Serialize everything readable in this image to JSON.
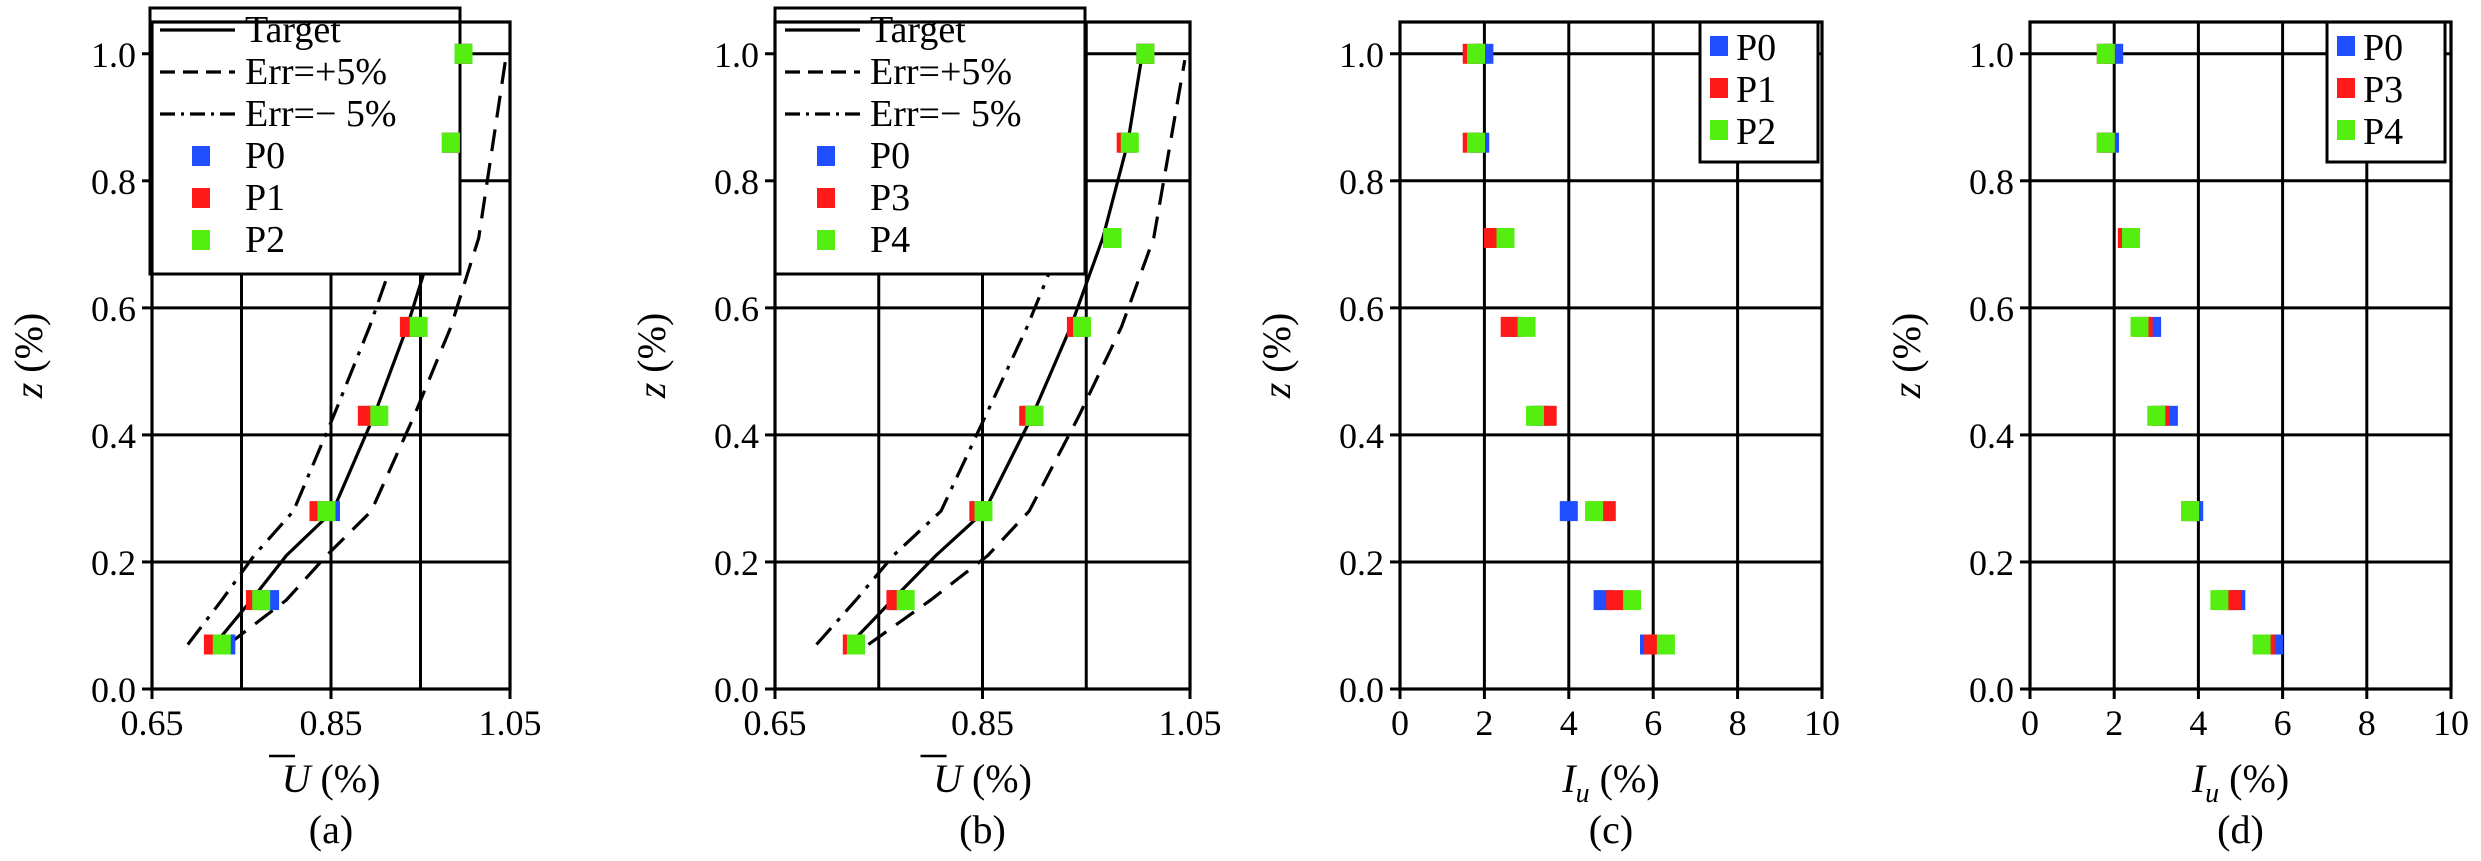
{
  "chart_data": [
    {
      "type": "scatter",
      "caption": "(a)",
      "xlabel_main": "U",
      "xlabel_unit": "(%)",
      "ylabel_main": "z",
      "ylabel_unit": "(%)",
      "xlim": [
        0.65,
        1.05
      ],
      "ylim": [
        0.0,
        1.05
      ],
      "xticks": [
        0.65,
        0.85,
        1.05
      ],
      "xtick_labels": [
        "0.65",
        "0.85",
        "1.05"
      ],
      "xgrid": [
        0.75,
        0.85,
        0.95
      ],
      "yticks": [
        0.0,
        0.2,
        0.4,
        0.6,
        0.8,
        1.0
      ],
      "ytick_labels": [
        "0.0",
        "0.2",
        "0.4",
        "0.6",
        "0.8",
        "1.0"
      ],
      "grid": true,
      "legend_position": "top-left",
      "lines": [
        {
          "name": "Target",
          "style": "solid",
          "x": [
            0.72,
            0.761,
            0.8,
            0.852,
            0.898,
            0.935,
            0.966,
            0.99
          ],
          "y": [
            0.07,
            0.14,
            0.21,
            0.28,
            0.43,
            0.57,
            0.71,
            0.86
          ]
        },
        {
          "name": "Err=+5%",
          "style": "dashed",
          "x": [
            0.735,
            0.8,
            0.845,
            0.895,
            0.943,
            0.984,
            1.015,
            1.045
          ],
          "y": [
            0.07,
            0.14,
            0.21,
            0.28,
            0.43,
            0.57,
            0.71,
            0.99
          ]
        },
        {
          "name": "Err=− 5%",
          "style": "dashdot",
          "x": [
            0.69,
            0.728,
            0.764,
            0.808,
            0.853,
            0.893,
            0.928
          ],
          "y": [
            0.07,
            0.14,
            0.21,
            0.28,
            0.43,
            0.57,
            0.71
          ]
        }
      ],
      "series": [
        {
          "name": "P0",
          "color": "#1f4fff",
          "x": [
            0.733,
            0.782,
            0.85,
            0.9,
            0.944,
            0.984,
            0.998
          ],
          "y": [
            0.07,
            0.14,
            0.28,
            0.43,
            0.57,
            0.86,
            1.0
          ]
        },
        {
          "name": "P1",
          "color": "#ff1a1a",
          "x": [
            0.718,
            0.765,
            0.836,
            0.89,
            0.937,
            0.984,
            0.998
          ],
          "y": [
            0.07,
            0.14,
            0.28,
            0.43,
            0.57,
            0.86,
            1.0
          ]
        },
        {
          "name": "P2",
          "color": "#55ee11",
          "x": [
            0.728,
            0.772,
            0.845,
            0.904,
            0.948,
            0.984,
            0.998
          ],
          "y": [
            0.07,
            0.14,
            0.28,
            0.43,
            0.57,
            0.86,
            1.0
          ]
        }
      ]
    },
    {
      "type": "scatter",
      "caption": "(b)",
      "xlabel_main": "U",
      "xlabel_unit": "(%)",
      "ylabel_main": "z",
      "ylabel_unit": "(%)",
      "xlim": [
        0.65,
        1.05
      ],
      "ylim": [
        0.0,
        1.05
      ],
      "xticks": [
        0.65,
        0.85,
        1.05
      ],
      "xtick_labels": [
        "0.65",
        "0.85",
        "1.05"
      ],
      "xgrid": [
        0.75,
        0.85,
        0.95
      ],
      "yticks": [
        0.0,
        0.2,
        0.4,
        0.6,
        0.8,
        1.0
      ],
      "ytick_labels": [
        "0.0",
        "0.2",
        "0.4",
        "0.6",
        "0.8",
        "1.0"
      ],
      "grid": true,
      "legend_position": "top-left",
      "lines": [
        {
          "name": "Target",
          "style": "solid",
          "x": [
            0.722,
            0.763,
            0.805,
            0.852,
            0.898,
            0.935,
            0.966,
            0.99,
            1.004
          ],
          "y": [
            0.07,
            0.14,
            0.21,
            0.28,
            0.43,
            0.57,
            0.71,
            0.86,
            1.0
          ]
        },
        {
          "name": "Err=+5%",
          "style": "dashed",
          "x": [
            0.74,
            0.8,
            0.855,
            0.895,
            0.943,
            0.984,
            1.015,
            1.045
          ],
          "y": [
            0.07,
            0.14,
            0.21,
            0.28,
            0.43,
            0.57,
            0.71,
            0.99
          ]
        },
        {
          "name": "Err=− 5%",
          "style": "dashdot",
          "x": [
            0.69,
            0.728,
            0.764,
            0.81,
            0.853,
            0.893,
            0.928
          ],
          "y": [
            0.07,
            0.14,
            0.21,
            0.28,
            0.43,
            0.57,
            0.71
          ]
        }
      ],
      "series": [
        {
          "name": "P0",
          "color": "#1f4fff",
          "x": [
            0.728,
            0.77,
            0.85,
            0.9,
            0.944,
            0.975,
            0.99,
            1.007
          ],
          "y": [
            0.07,
            0.14,
            0.28,
            0.43,
            0.57,
            0.71,
            0.86,
            1.0
          ]
        },
        {
          "name": "P3",
          "color": "#ff1a1a",
          "x": [
            0.724,
            0.766,
            0.846,
            0.894,
            0.94,
            0.975,
            0.988,
            1.007
          ],
          "y": [
            0.07,
            0.14,
            0.28,
            0.43,
            0.57,
            0.71,
            0.86,
            1.0
          ]
        },
        {
          "name": "P4",
          "color": "#55ee11",
          "x": [
            0.728,
            0.776,
            0.851,
            0.9,
            0.946,
            0.975,
            0.992,
            1.007
          ],
          "y": [
            0.07,
            0.14,
            0.28,
            0.43,
            0.57,
            0.71,
            0.86,
            1.0
          ]
        }
      ]
    },
    {
      "type": "scatter",
      "caption": "(c)",
      "xlabel_main": "I",
      "xlabel_sub": "u",
      "xlabel_unit": "(%)",
      "ylabel_main": "z",
      "ylabel_unit": "(%)",
      "xlim": [
        0,
        10
      ],
      "ylim": [
        0.0,
        1.05
      ],
      "xticks": [
        0,
        2,
        4,
        6,
        8,
        10
      ],
      "xtick_labels": [
        "0",
        "2",
        "4",
        "6",
        "8",
        "10"
      ],
      "xgrid": [
        2,
        4,
        6,
        8
      ],
      "yticks": [
        0.0,
        0.2,
        0.4,
        0.6,
        0.8,
        1.0
      ],
      "ytick_labels": [
        "0.0",
        "0.2",
        "0.4",
        "0.6",
        "0.8",
        "1.0"
      ],
      "grid": true,
      "legend_position": "top-right",
      "lines": [],
      "series": [
        {
          "name": "P0",
          "color": "#1f4fff",
          "x": [
            5.9,
            4.8,
            4.0,
            3.3,
            2.7,
            2.3,
            1.9,
            2.0
          ],
          "y": [
            0.07,
            0.14,
            0.28,
            0.43,
            0.57,
            0.71,
            0.86,
            1.0
          ]
        },
        {
          "name": "P1",
          "color": "#ff1a1a",
          "x": [
            6.0,
            5.1,
            4.9,
            3.5,
            2.6,
            2.2,
            1.7,
            1.7
          ],
          "y": [
            0.07,
            0.14,
            0.28,
            0.43,
            0.57,
            0.71,
            0.86,
            1.0
          ]
        },
        {
          "name": "P2",
          "color": "#55ee11",
          "x": [
            6.3,
            5.5,
            4.6,
            3.2,
            3.0,
            2.5,
            1.8,
            1.8
          ],
          "y": [
            0.07,
            0.14,
            0.28,
            0.43,
            0.57,
            0.71,
            0.86,
            1.0
          ]
        }
      ]
    },
    {
      "type": "scatter",
      "caption": "(d)",
      "xlabel_main": "I",
      "xlabel_sub": "u",
      "xlabel_unit": "(%)",
      "ylabel_main": "z",
      "ylabel_unit": "(%)",
      "xlim": [
        0,
        10
      ],
      "ylim": [
        0.0,
        1.05
      ],
      "xticks": [
        0,
        2,
        4,
        6,
        8,
        10
      ],
      "xtick_labels": [
        "0",
        "2",
        "4",
        "6",
        "8",
        "10"
      ],
      "xgrid": [
        2,
        4,
        6,
        8
      ],
      "yticks": [
        0.0,
        0.2,
        0.4,
        0.6,
        0.8,
        1.0
      ],
      "ytick_labels": [
        "0.0",
        "0.2",
        "0.4",
        "0.6",
        "0.8",
        "1.0"
      ],
      "grid": true,
      "legend_position": "top-right",
      "lines": [],
      "series": [
        {
          "name": "P0",
          "color": "#1f4fff",
          "x": [
            5.8,
            4.9,
            3.9,
            3.3,
            2.9,
            2.4,
            1.9,
            2.0
          ],
          "y": [
            0.07,
            0.14,
            0.28,
            0.43,
            0.57,
            0.71,
            0.86,
            1.0
          ]
        },
        {
          "name": "P3",
          "color": "#ff1a1a",
          "x": [
            5.6,
            4.8,
            3.8,
            3.1,
            2.7,
            2.3,
            1.8,
            1.8
          ],
          "y": [
            0.07,
            0.14,
            0.28,
            0.43,
            0.57,
            0.71,
            0.86,
            1.0
          ]
        },
        {
          "name": "P4",
          "color": "#55ee11",
          "x": [
            5.5,
            4.5,
            3.8,
            3.0,
            2.6,
            2.4,
            1.8,
            1.8
          ],
          "y": [
            0.07,
            0.14,
            0.28,
            0.43,
            0.57,
            0.71,
            0.86,
            1.0
          ]
        }
      ]
    }
  ]
}
